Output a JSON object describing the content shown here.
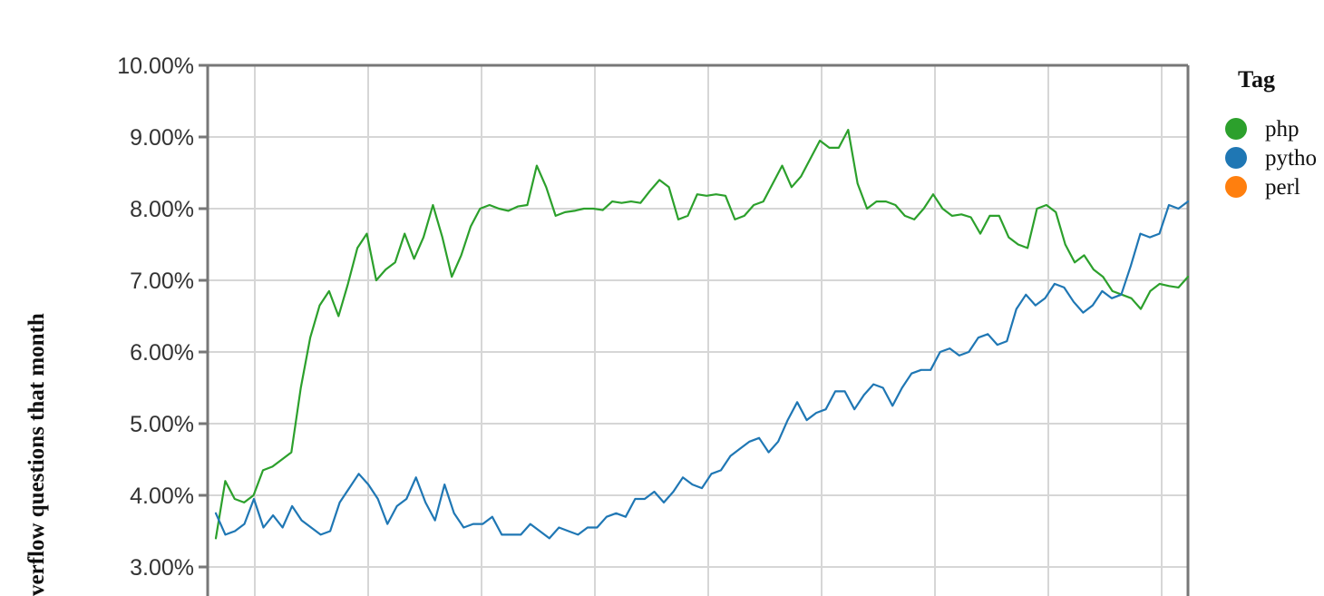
{
  "chart_data": {
    "type": "line",
    "title": "",
    "xlabel": "",
    "ylabel": "verflow questions that month",
    "y_unit": "%",
    "ylim": [
      3.0,
      10.0
    ],
    "y_ticks": [
      "10.00%",
      "9.00%",
      "8.00%",
      "7.00%",
      "6.00%",
      "5.00%",
      "4.00%",
      "3.00%"
    ],
    "grid": true,
    "legend": {
      "title": "Tag",
      "placement": "right",
      "entries": [
        {
          "name": "php",
          "color": "#2ca02c"
        },
        {
          "name": "pytho",
          "color": "#1f77b4"
        },
        {
          "name": "perl",
          "color": "#ff7f0e"
        }
      ]
    },
    "series": [
      {
        "name": "php",
        "color": "#2ca02c",
        "values": [
          3.4,
          4.2,
          3.95,
          3.9,
          4.0,
          4.35,
          4.4,
          4.5,
          4.6,
          5.5,
          6.2,
          6.65,
          6.85,
          6.5,
          6.95,
          7.45,
          7.65,
          7.0,
          7.15,
          7.25,
          7.65,
          7.3,
          7.6,
          8.05,
          7.6,
          7.05,
          7.35,
          7.75,
          8.0,
          8.05,
          8.0,
          7.97,
          8.03,
          8.05,
          8.6,
          8.3,
          7.9,
          7.95,
          7.97,
          8.0,
          8.0,
          7.98,
          8.1,
          8.08,
          8.1,
          8.08,
          8.25,
          8.4,
          8.3,
          7.85,
          7.9,
          8.2,
          8.18,
          8.2,
          8.18,
          7.85,
          7.9,
          8.05,
          8.1,
          8.35,
          8.6,
          8.3,
          8.45,
          8.7,
          8.95,
          8.85,
          8.85,
          9.1,
          8.35,
          8.0,
          8.1,
          8.1,
          8.05,
          7.9,
          7.85,
          8.0,
          8.2,
          8.0,
          7.9,
          7.92,
          7.88,
          7.65,
          7.9,
          7.9,
          7.6,
          7.5,
          7.45,
          8.0,
          8.05,
          7.95,
          7.5,
          7.25,
          7.35,
          7.15,
          7.05,
          6.85,
          6.8,
          6.75,
          6.6,
          6.85,
          6.95,
          6.92,
          6.9,
          7.05
        ]
      },
      {
        "name": "pytho",
        "color": "#1f77b4",
        "values": [
          3.75,
          3.45,
          3.5,
          3.6,
          3.95,
          3.55,
          3.72,
          3.55,
          3.85,
          3.65,
          3.55,
          3.45,
          3.5,
          3.9,
          4.1,
          4.3,
          4.15,
          3.95,
          3.6,
          3.85,
          3.95,
          4.25,
          3.9,
          3.65,
          4.15,
          3.75,
          3.55,
          3.6,
          3.6,
          3.7,
          3.45,
          3.45,
          3.45,
          3.6,
          3.5,
          3.4,
          3.55,
          3.5,
          3.45,
          3.55,
          3.55,
          3.7,
          3.75,
          3.7,
          3.95,
          3.95,
          4.05,
          3.9,
          4.05,
          4.25,
          4.15,
          4.1,
          4.3,
          4.35,
          4.55,
          4.65,
          4.75,
          4.8,
          4.6,
          4.75,
          5.05,
          5.3,
          5.05,
          5.15,
          5.2,
          5.45,
          5.45,
          5.2,
          5.4,
          5.55,
          5.5,
          5.25,
          5.5,
          5.7,
          5.75,
          5.75,
          6.0,
          6.05,
          5.95,
          6.0,
          6.2,
          6.25,
          6.1,
          6.15,
          6.6,
          6.8,
          6.65,
          6.75,
          6.95,
          6.9,
          6.7,
          6.55,
          6.65,
          6.85,
          6.75,
          6.8,
          7.2,
          7.65,
          7.6,
          7.65,
          8.05,
          8.0,
          8.1
        ]
      },
      {
        "name": "perl",
        "color": "#ff7f0e",
        "values": []
      }
    ]
  }
}
